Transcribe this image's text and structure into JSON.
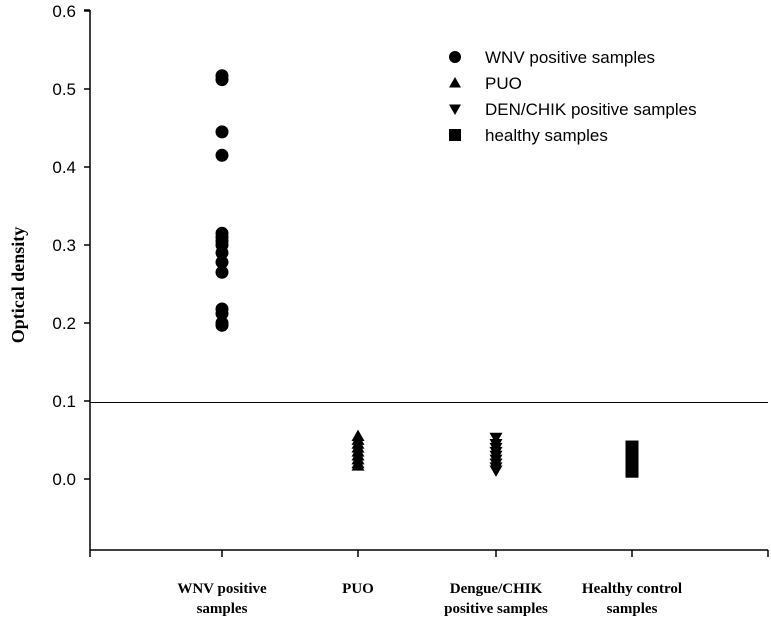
{
  "chart_data": {
    "type": "scatter",
    "title": "",
    "xlabel": "",
    "ylabel": "Optical density",
    "ylim": [
      -0.095,
      0.6
    ],
    "yticks": [
      "0.0",
      "0.1",
      "0.2",
      "0.3",
      "0.4",
      "0.5",
      "0.6"
    ],
    "ytick_values": [
      0.0,
      0.1,
      0.2,
      0.3,
      0.4,
      0.5,
      0.6
    ],
    "categories": [
      [
        "WNV positive",
        "samples"
      ],
      [
        "PUO"
      ],
      [
        "Dengue/CHIK",
        "positive samples"
      ],
      [
        "Healthy control",
        "samples"
      ]
    ],
    "cutoff": 0.098,
    "grid": false,
    "legend_position": "top-right",
    "series": [
      {
        "name": "WNV positive samples",
        "marker": "circle",
        "category": 0,
        "values": [
          0.517,
          0.512,
          0.445,
          0.415,
          0.315,
          0.31,
          0.305,
          0.3,
          0.29,
          0.278,
          0.265,
          0.218,
          0.212,
          0.2,
          0.197
        ]
      },
      {
        "name": "PUO",
        "marker": "triangle-up",
        "category": 1,
        "values": [
          0.055,
          0.05,
          0.045,
          0.04,
          0.035,
          0.03,
          0.025,
          0.02,
          0.017
        ]
      },
      {
        "name": "DEN/CHIK positive samples",
        "marker": "triangle-down",
        "category": 2,
        "values": [
          0.053,
          0.045,
          0.04,
          0.035,
          0.03,
          0.025,
          0.02,
          0.015,
          0.011
        ]
      },
      {
        "name": "healthy samples",
        "marker": "square",
        "category": 3,
        "values": [
          0.041,
          0.037,
          0.033,
          0.029,
          0.025,
          0.021,
          0.017,
          0.013,
          0.01
        ]
      }
    ]
  }
}
